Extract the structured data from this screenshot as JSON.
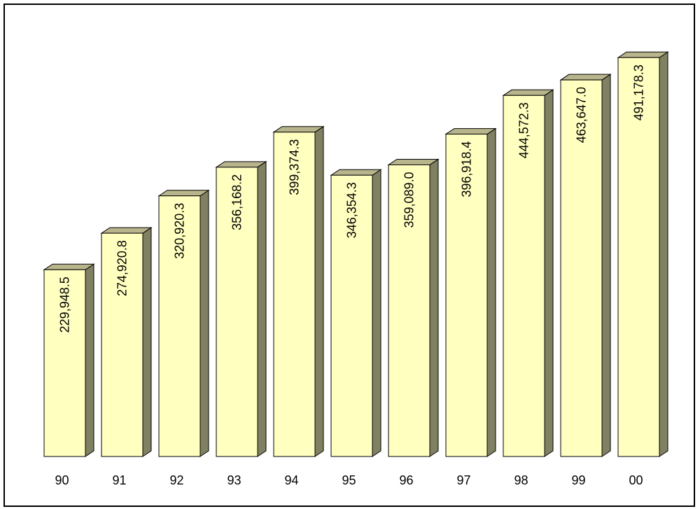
{
  "chart_data": {
    "type": "bar",
    "title": "",
    "xlabel": "",
    "ylabel": "",
    "categories": [
      "90",
      "91",
      "92",
      "93",
      "94",
      "95",
      "96",
      "97",
      "98",
      "99",
      "00"
    ],
    "values": [
      229948.5,
      274920.8,
      320920.3,
      356168.2,
      399374.3,
      346354.3,
      359089.0,
      396918.4,
      444572.3,
      463647.0,
      491178.3
    ],
    "value_labels": [
      "229,948.5",
      "274,920.8",
      "320,920.3",
      "356,168.2",
      "399,374.3",
      "346,354.3",
      "359,089.0",
      "396,918.4",
      "444,572.3",
      "463,647.0",
      "491,178.3"
    ],
    "ylim": [
      0,
      500000
    ],
    "grid": false,
    "legend": "none",
    "colors": {
      "bar_front": "#ffffc0",
      "bar_top": "#b8b48c",
      "bar_side": "#808062",
      "edge": "#000000"
    }
  }
}
